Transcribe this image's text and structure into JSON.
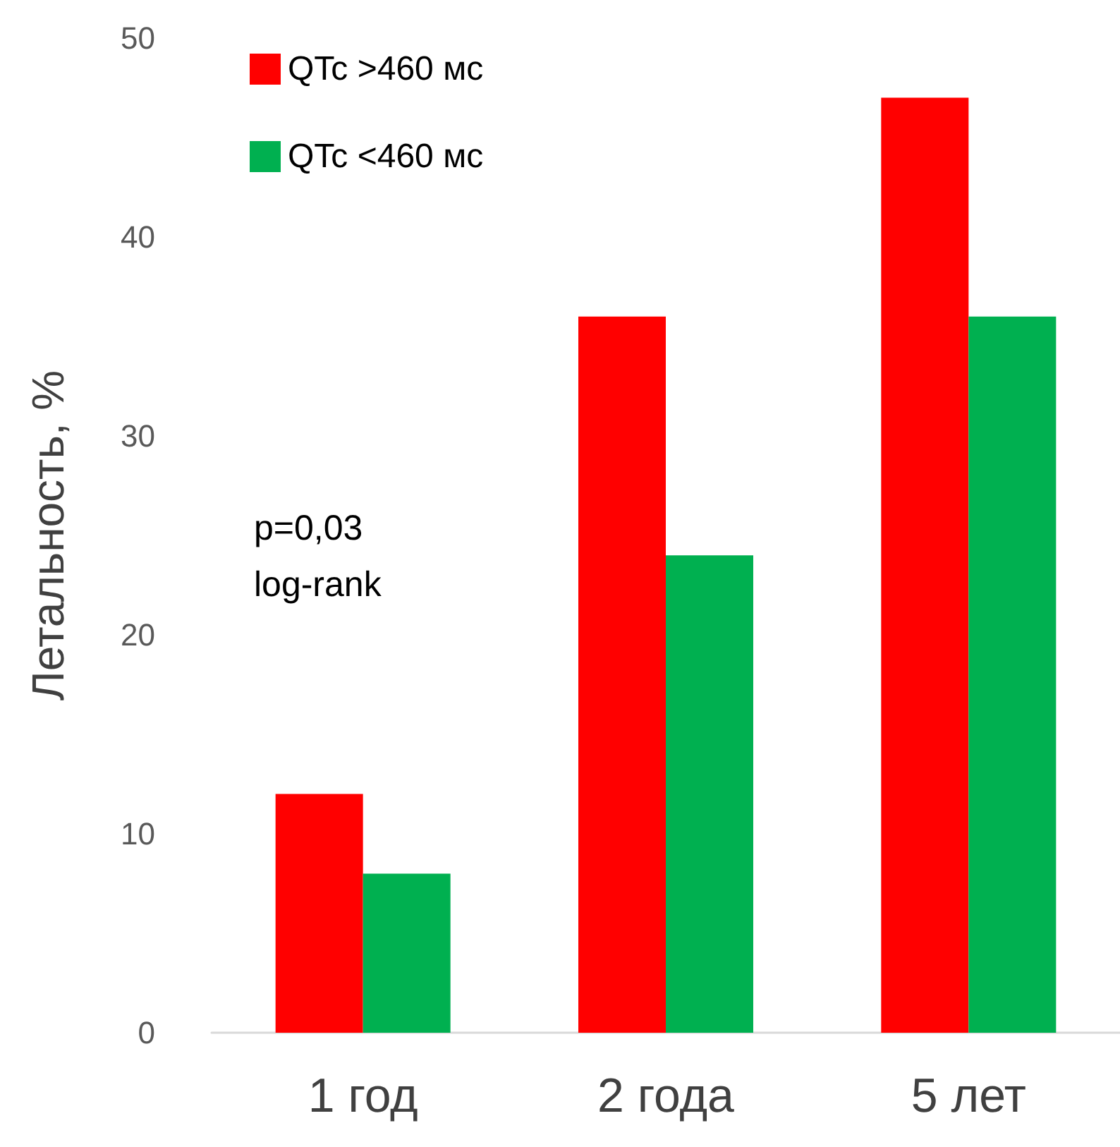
{
  "chart_data": {
    "type": "bar",
    "ylabel": "Летальность, %",
    "categories": [
      "1 год",
      "2 года",
      "5 лет"
    ],
    "series": [
      {
        "name": "QTc >460 мс",
        "color": "#ff0000",
        "values": [
          12,
          36,
          47
        ]
      },
      {
        "name": "QTc <460 мс",
        "color": "#00b050",
        "values": [
          8,
          24,
          36
        ]
      }
    ],
    "ylim": [
      0,
      50
    ],
    "yticks": [
      0,
      10,
      20,
      30,
      40,
      50
    ],
    "grid": false,
    "legend": "top left",
    "annotations": [
      "p=0,03",
      "log-rank"
    ]
  }
}
